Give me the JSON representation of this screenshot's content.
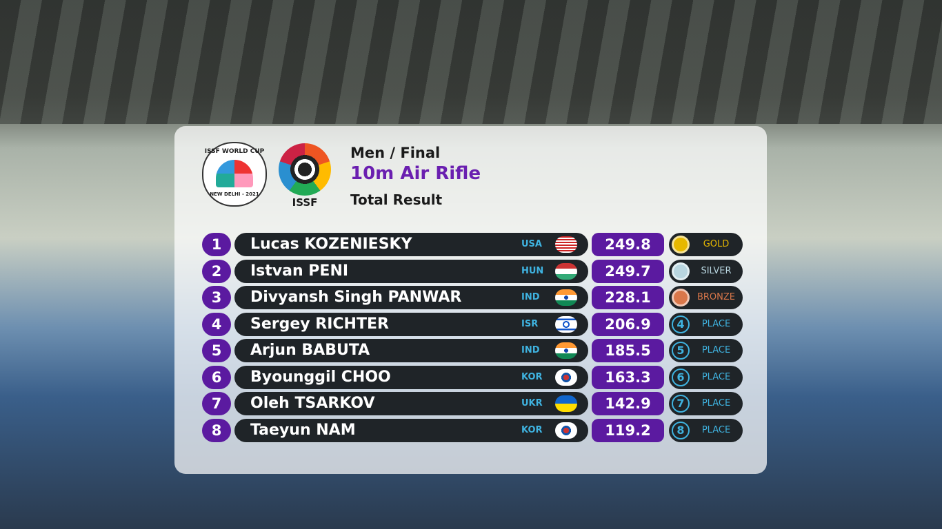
{
  "header": {
    "event_logo": "ISSF WORLD CUP",
    "event_place": "NEW DELHI - 2021",
    "federation": "ISSF",
    "phase": "Men / Final",
    "event": "10m Air Rifle",
    "result_type": "Total Result"
  },
  "rows": [
    {
      "rank": 1,
      "name": "Lucas KOZENIESKY",
      "country": "USA",
      "score": 249.8,
      "award": "GOLD"
    },
    {
      "rank": 2,
      "name": "Istvan PENI",
      "country": "HUN",
      "score": 249.7,
      "award": "SILVER"
    },
    {
      "rank": 3,
      "name": "Divyansh Singh PANWAR",
      "country": "IND",
      "score": 228.1,
      "award": "BRONZE"
    },
    {
      "rank": 4,
      "name": "Sergey RICHTER",
      "country": "ISR",
      "score": 206.9,
      "award": "PLACE"
    },
    {
      "rank": 5,
      "name": "Arjun BABUTA",
      "country": "IND",
      "score": 185.5,
      "award": "PLACE"
    },
    {
      "rank": 6,
      "name": "Byounggil CHOO",
      "country": "KOR",
      "score": 163.3,
      "award": "PLACE"
    },
    {
      "rank": 7,
      "name": "Oleh TSARKOV",
      "country": "UKR",
      "score": 142.9,
      "award": "PLACE"
    },
    {
      "rank": 8,
      "name": "Taeyun NAM",
      "country": "KOR",
      "score": 119.2,
      "award": "PLACE"
    }
  ]
}
